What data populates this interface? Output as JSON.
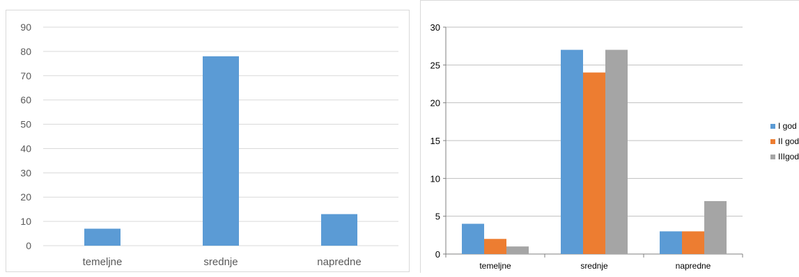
{
  "chart_data": [
    {
      "type": "bar",
      "title": "",
      "xlabel": "",
      "ylabel": "",
      "categories": [
        "temeljne",
        "srednje",
        "napredne"
      ],
      "values": [
        7,
        78,
        13
      ],
      "ylim": [
        0,
        90
      ],
      "yticks": [
        "0",
        "10",
        "20",
        "30",
        "40",
        "50",
        "60",
        "70",
        "80",
        "90"
      ],
      "grid": true,
      "legend": "none",
      "color": "#5b9bd5"
    },
    {
      "type": "bar",
      "title": "",
      "xlabel": "",
      "ylabel": "",
      "categories": [
        "temeljne",
        "srednje",
        "napredne"
      ],
      "series": [
        {
          "name": "I god",
          "values": [
            4,
            27,
            3
          ],
          "color": "#5b9bd5"
        },
        {
          "name": "II god",
          "values": [
            2,
            24,
            3
          ],
          "color": "#ed7d31"
        },
        {
          "name": "IIIgod",
          "values": [
            1,
            27,
            7
          ],
          "color": "#a5a5a5"
        }
      ],
      "ylim": [
        0,
        30
      ],
      "yticks": [
        "0",
        "5",
        "10",
        "15",
        "20",
        "25",
        "30"
      ],
      "grid": true,
      "legend": "right"
    }
  ]
}
